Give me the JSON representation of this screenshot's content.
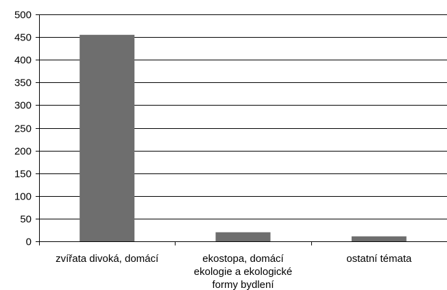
{
  "chart_data": {
    "type": "bar",
    "categories": [
      [
        "zvířata divoká, domácí"
      ],
      [
        "ekostopa, domácí",
        "ekologie a ekologické",
        "formy bydlení"
      ],
      [
        "ostatní témata"
      ]
    ],
    "values": [
      455,
      20,
      11
    ],
    "ylim": [
      0,
      500
    ],
    "yticks": [
      "0",
      "50",
      "100",
      "150",
      "200",
      "250",
      "300",
      "350",
      "400",
      "450",
      "500"
    ],
    "grid": true,
    "bar_color": "#6e6e6e",
    "grid_color": "#000000"
  }
}
